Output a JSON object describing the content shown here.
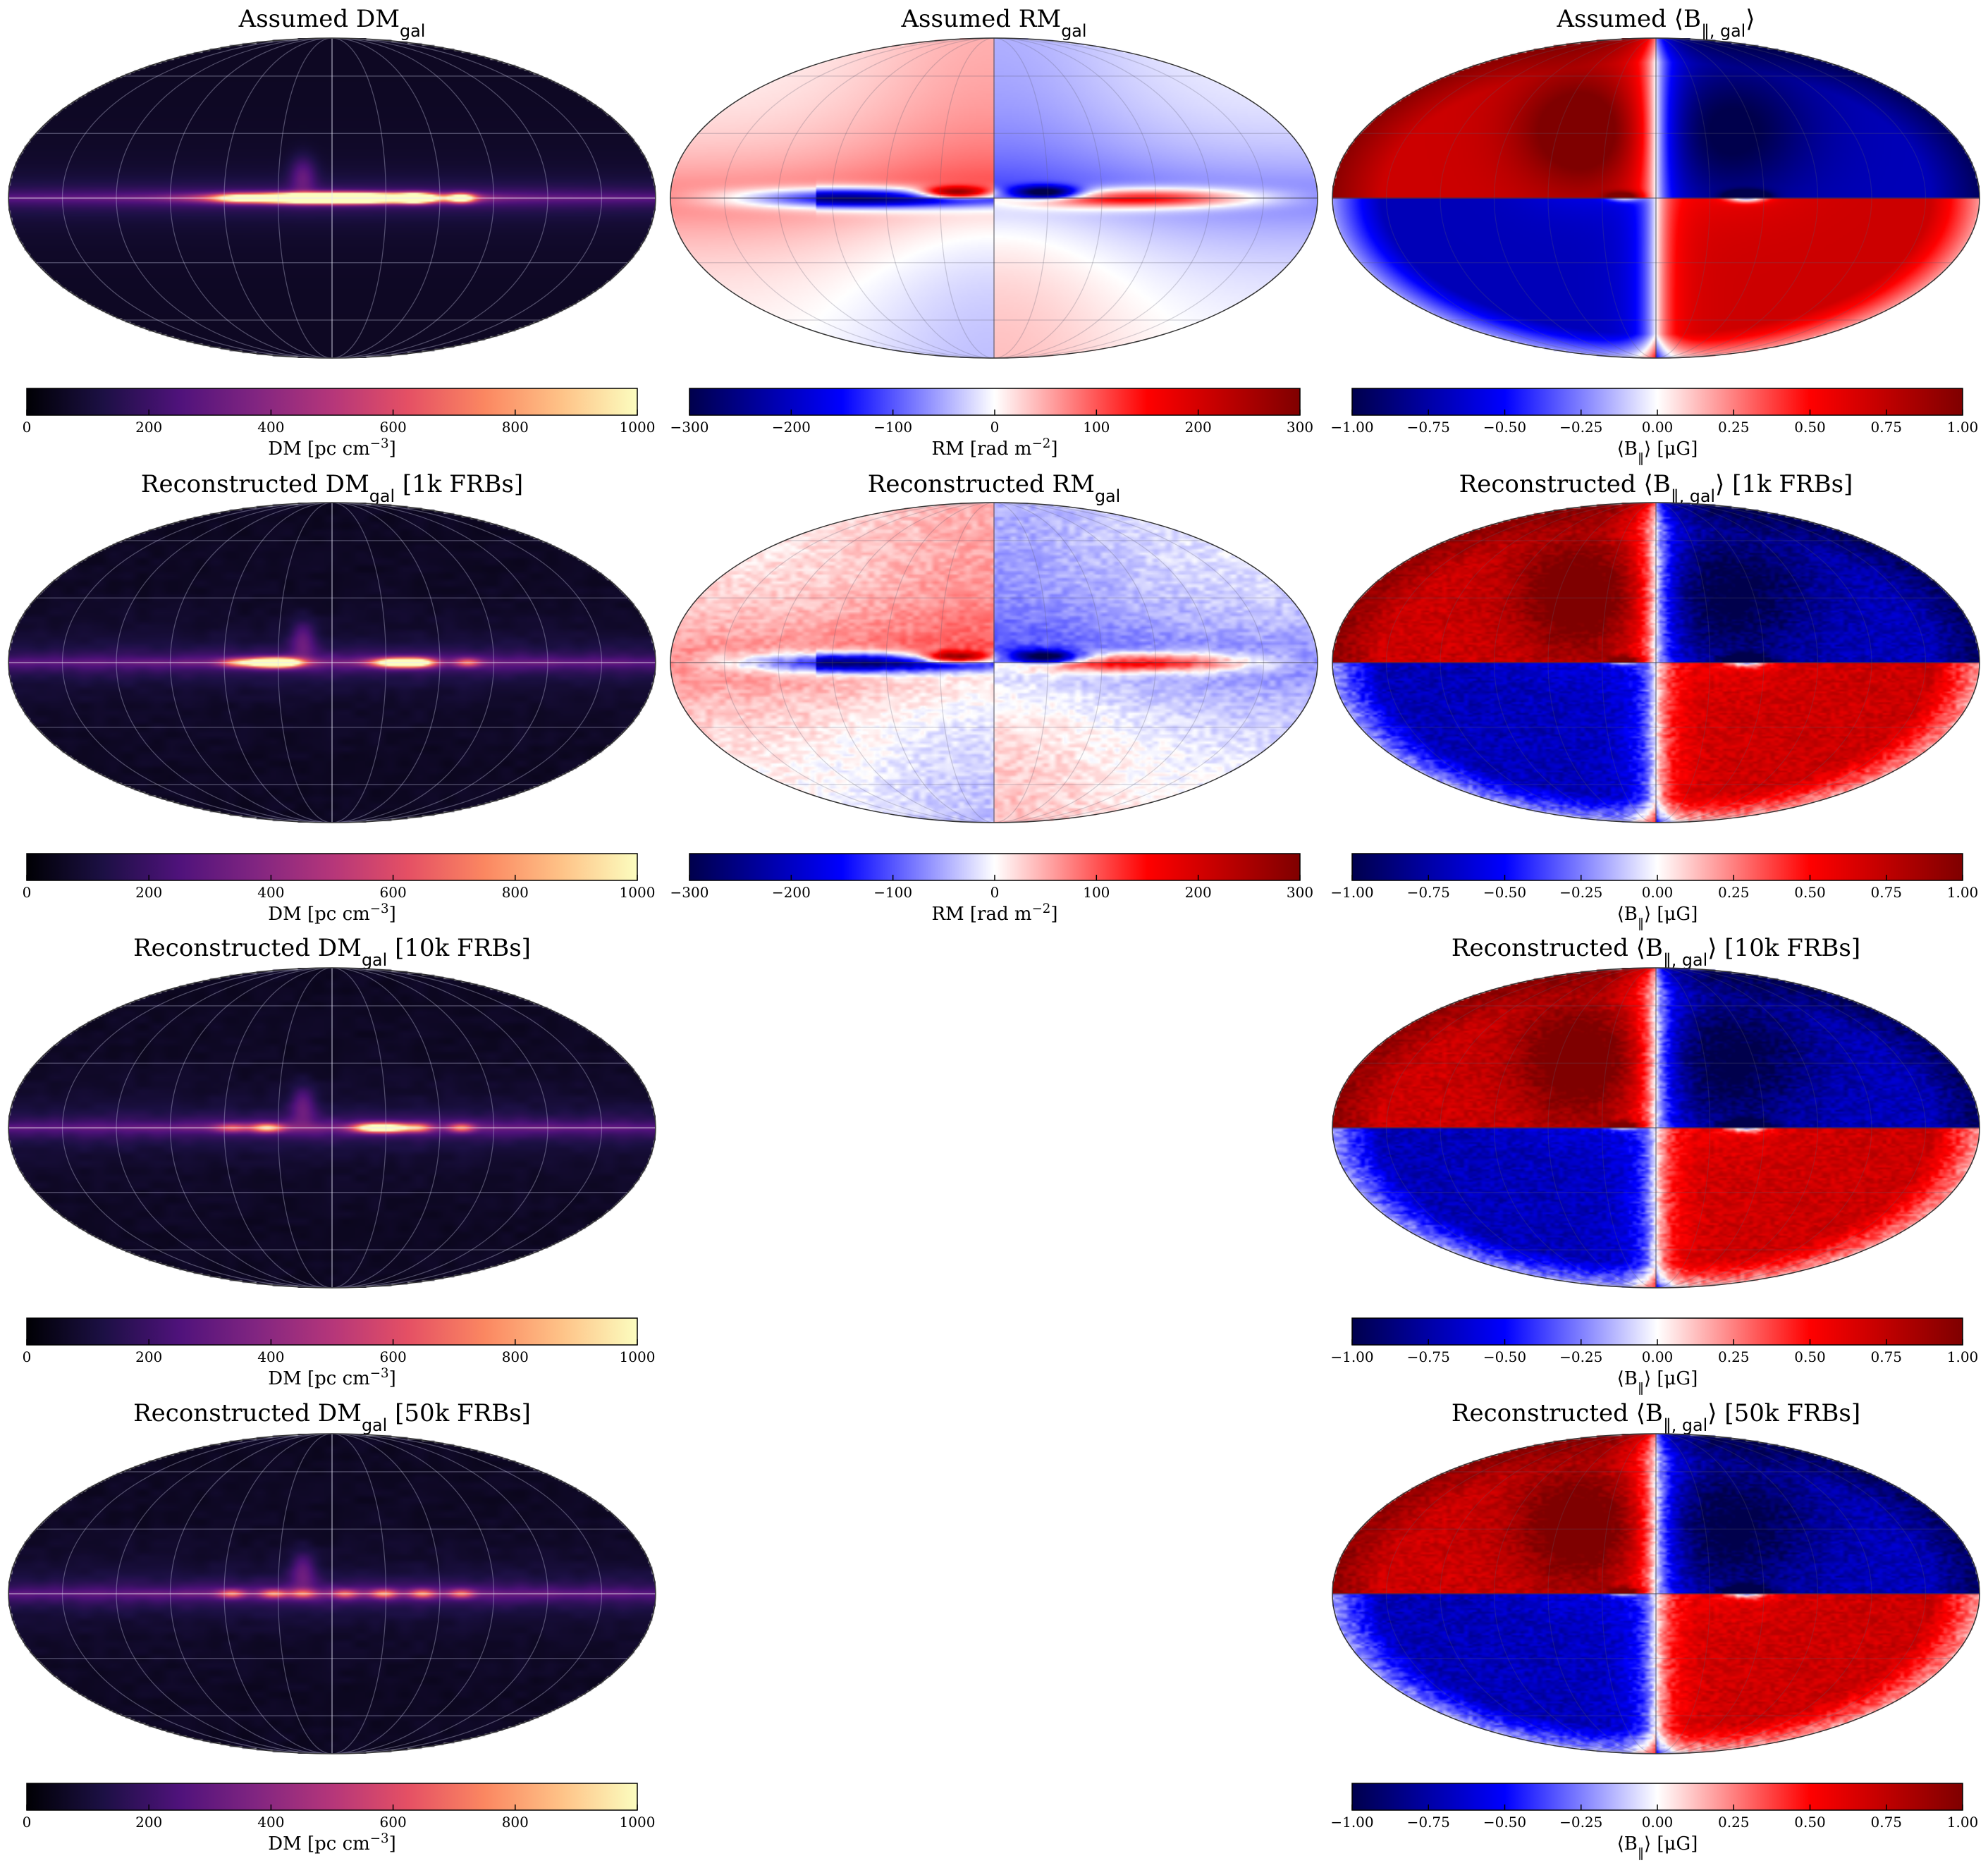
{
  "chart_data": {
    "type": "heatmap",
    "projection": "mollweide",
    "colormaps": {
      "dm": [
        "#000004",
        "#1c1044",
        "#4f127b",
        "#812581",
        "#b5367a",
        "#e55064",
        "#fb8761",
        "#fec287",
        "#fcfdbf"
      ],
      "rm": [
        "#00004c",
        "#0000ff",
        "#ffffff",
        "#ff0000",
        "#7f0000"
      ],
      "b": [
        "#00004c",
        "#0000ff",
        "#ffffff",
        "#ff0000",
        "#7f0000"
      ]
    },
    "panels": [
      {
        "id": "dm-assumed",
        "kind": "dm",
        "model": "assumed",
        "row": 0,
        "col": 0,
        "title": {
          "pre": "Assumed DM",
          "sub": "gal",
          "post": ""
        },
        "colorbar": {
          "ticks": [
            "0",
            "200",
            "400",
            "600",
            "800",
            "1000"
          ],
          "label_pre": "DM [pc cm",
          "label_sup": "−3",
          "label_post": "]",
          "vmin": 0,
          "vmax": 1000
        }
      },
      {
        "id": "rm-assumed",
        "kind": "rm",
        "model": "assumed",
        "row": 0,
        "col": 1,
        "title": {
          "pre": "Assumed RM",
          "sub": "gal",
          "post": ""
        },
        "colorbar": {
          "ticks": [
            "−300",
            "−200",
            "−100",
            "0",
            "100",
            "200",
            "300"
          ],
          "label_pre": "RM [rad m",
          "label_sup": "−2",
          "label_post": "]",
          "vmin": -300,
          "vmax": 300
        }
      },
      {
        "id": "b-assumed",
        "kind": "b",
        "model": "assumed",
        "row": 0,
        "col": 2,
        "title": {
          "pre": "Assumed ⟨B",
          "sub": "∥, gal",
          "post": "⟩"
        },
        "colorbar": {
          "ticks": [
            "−1.00",
            "−0.75",
            "−0.50",
            "−0.25",
            "0.00",
            "0.25",
            "0.50",
            "0.75",
            "1.00"
          ],
          "label_pre": "⟨B",
          "label_sub": "∥",
          "label_post": "⟩ [μG]",
          "vmin": -1,
          "vmax": 1
        }
      },
      {
        "id": "dm-1k",
        "kind": "dm",
        "model": "recon1k",
        "row": 1,
        "col": 0,
        "title": {
          "pre": "Reconstructed DM",
          "sub": "gal",
          "post": " [1k FRBs]"
        },
        "colorbar": {
          "ticks": [
            "0",
            "200",
            "400",
            "600",
            "800",
            "1000"
          ],
          "label_pre": "DM [pc cm",
          "label_sup": "−3",
          "label_post": "]",
          "vmin": 0,
          "vmax": 1000
        }
      },
      {
        "id": "rm-1k",
        "kind": "rm",
        "model": "recon",
        "row": 1,
        "col": 1,
        "title": {
          "pre": "Reconstructed RM",
          "sub": "gal",
          "post": ""
        },
        "colorbar": {
          "ticks": [
            "−300",
            "−200",
            "−100",
            "0",
            "100",
            "200",
            "300"
          ],
          "label_pre": "RM [rad m",
          "label_sup": "−2",
          "label_post": "]",
          "vmin": -300,
          "vmax": 300
        }
      },
      {
        "id": "b-1k",
        "kind": "b",
        "model": "recon",
        "row": 1,
        "col": 2,
        "title": {
          "pre": "Reconstructed ⟨B",
          "sub": "∥, gal",
          "post": "⟩ [1k FRBs]"
        },
        "colorbar": {
          "ticks": [
            "−1.00",
            "−0.75",
            "−0.50",
            "−0.25",
            "0.00",
            "0.25",
            "0.50",
            "0.75",
            "1.00"
          ],
          "label_pre": "⟨B",
          "label_sub": "∥",
          "label_post": "⟩ [μG]",
          "vmin": -1,
          "vmax": 1
        }
      },
      {
        "id": "dm-10k",
        "kind": "dm",
        "model": "recon10k",
        "row": 2,
        "col": 0,
        "title": {
          "pre": "Reconstructed DM",
          "sub": "gal",
          "post": " [10k FRBs]"
        },
        "colorbar": {
          "ticks": [
            "0",
            "200",
            "400",
            "600",
            "800",
            "1000"
          ],
          "label_pre": "DM [pc cm",
          "label_sup": "−3",
          "label_post": "]",
          "vmin": 0,
          "vmax": 1000
        }
      },
      {
        "id": "b-10k",
        "kind": "b",
        "model": "recon",
        "row": 2,
        "col": 2,
        "title": {
          "pre": "Reconstructed ⟨B",
          "sub": "∥, gal",
          "post": "⟩ [10k FRBs]"
        },
        "colorbar": {
          "ticks": [
            "−1.00",
            "−0.75",
            "−0.50",
            "−0.25",
            "0.00",
            "0.25",
            "0.50",
            "0.75",
            "1.00"
          ],
          "label_pre": "⟨B",
          "label_sub": "∥",
          "label_post": "⟩ [μG]",
          "vmin": -1,
          "vmax": 1
        }
      },
      {
        "id": "dm-50k",
        "kind": "dm",
        "model": "recon50k",
        "row": 3,
        "col": 0,
        "title": {
          "pre": "Reconstructed DM",
          "sub": "gal",
          "post": " [50k FRBs]"
        },
        "colorbar": {
          "ticks": [
            "0",
            "200",
            "400",
            "600",
            "800",
            "1000"
          ],
          "label_pre": "DM [pc cm",
          "label_sup": "−3",
          "label_post": "]",
          "vmin": 0,
          "vmax": 1000
        }
      },
      {
        "id": "b-50k",
        "kind": "b",
        "model": "recon",
        "row": 3,
        "col": 2,
        "title": {
          "pre": "Reconstructed ⟨B",
          "sub": "∥, gal",
          "post": "⟩ [50k FRBs]"
        },
        "colorbar": {
          "ticks": [
            "−1.00",
            "−0.75",
            "−0.50",
            "−0.25",
            "0.00",
            "0.25",
            "0.50",
            "0.75",
            "1.00"
          ],
          "label_pre": "⟨B",
          "label_sub": "∥",
          "label_post": "⟩ [μG]",
          "vmin": -1,
          "vmax": 1
        }
      }
    ]
  }
}
